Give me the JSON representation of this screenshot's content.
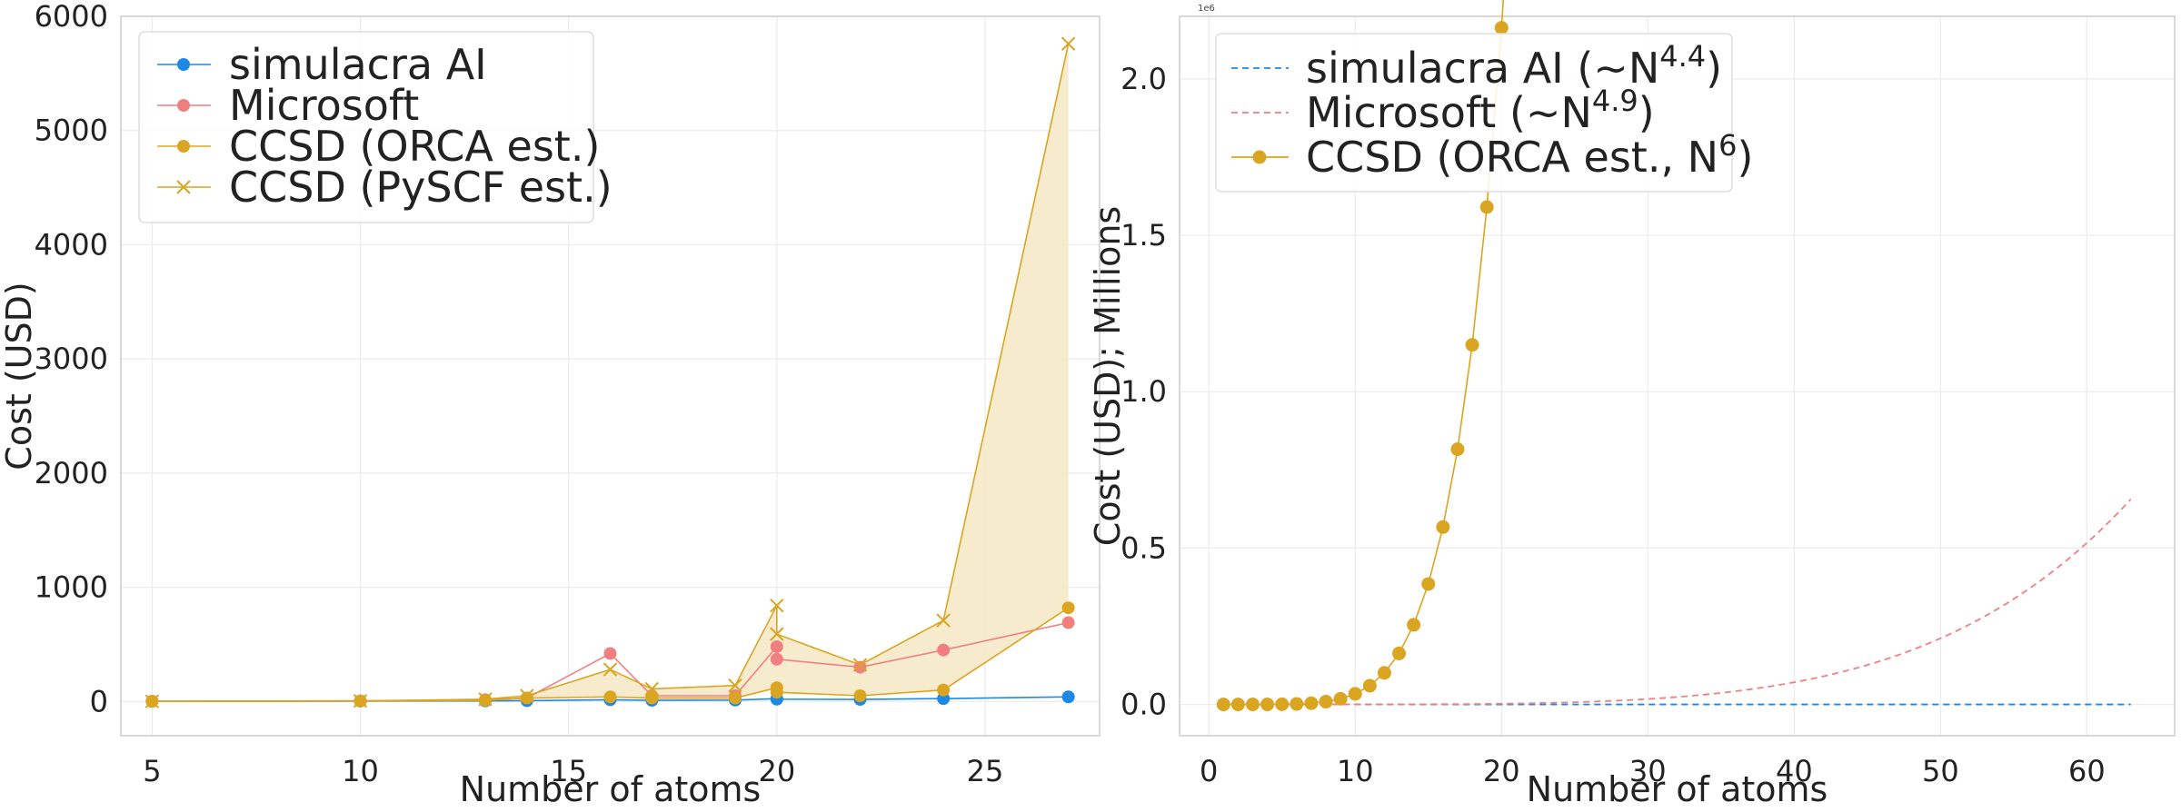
{
  "chart_data": [
    {
      "type": "line",
      "xlabel": "Number of atoms",
      "ylabel": "Cost (USD)",
      "xlim": [
        4.25,
        27.75
      ],
      "ylim": [
        -300,
        6000
      ],
      "xticks": [
        5,
        10,
        15,
        20,
        25
      ],
      "yticks": [
        0,
        1000,
        2000,
        3000,
        4000,
        5000,
        6000
      ],
      "grid": true,
      "legend_position": "top-left",
      "fill_between": {
        "lower": "CCSD (ORCA est.)",
        "upper": "CCSD (PySCF est.)",
        "color": "#f5e9c8"
      },
      "series": [
        {
          "name": "simulacra AI",
          "color": "#1e88e5",
          "marker": "circle",
          "x": [
            5,
            10,
            13,
            14,
            16,
            17,
            19,
            20,
            20,
            22,
            24,
            27
          ],
          "y": [
            1,
            3,
            5,
            7,
            15,
            10,
            12,
            25,
            20,
            18,
            25,
            40
          ]
        },
        {
          "name": "Microsoft",
          "color": "#f08080",
          "marker": "circle",
          "x": [
            5,
            10,
            13,
            14,
            16,
            17,
            19,
            20,
            20,
            22,
            24,
            27
          ],
          "y": [
            1,
            5,
            15,
            30,
            420,
            50,
            50,
            480,
            370,
            300,
            450,
            690
          ]
        },
        {
          "name": "CCSD (ORCA est.)",
          "color": "#daa520",
          "marker": "circle",
          "x": [
            5,
            10,
            13,
            14,
            16,
            17,
            19,
            20,
            20,
            22,
            24,
            27
          ],
          "y": [
            1,
            4,
            10,
            30,
            40,
            30,
            30,
            120,
            80,
            50,
            100,
            820
          ]
        },
        {
          "name": "CCSD (PySCF est.)",
          "color": "#daa520",
          "marker": "x",
          "x": [
            5,
            10,
            13,
            14,
            16,
            17,
            19,
            20,
            20,
            22,
            24,
            27
          ],
          "y": [
            1,
            5,
            20,
            50,
            280,
            110,
            140,
            840,
            590,
            320,
            710,
            5760
          ]
        }
      ]
    },
    {
      "type": "line",
      "xlabel": "Number of atoms",
      "ylabel": "Cost (USD); Millions",
      "offset_text": "1e6",
      "xlim": [
        -2,
        66
      ],
      "ylim": [
        -0.1,
        2.2
      ],
      "xticks": [
        0,
        10,
        20,
        30,
        40,
        50,
        60
      ],
      "yticks": [
        0.0,
        0.5,
        1.0,
        1.5,
        2.0
      ],
      "ytick_labels": [
        "0.0",
        "0.5",
        "1.0",
        "1.5",
        "2.0"
      ],
      "grid": true,
      "legend_position": "top-left",
      "series": [
        {
          "name": "simulacra AI (∼N^4.4)",
          "legend_base": "simulacra AI (∼N",
          "legend_exp": "4.4",
          "legend_close": ")",
          "color": "#1e88e5",
          "style": "dashed",
          "model": {
            "coef": 1.1e-07,
            "power": 4.4
          }
        },
        {
          "name": "Microsoft (∼N^4.9)",
          "legend_base": "Microsoft (∼N",
          "legend_exp": "4.9",
          "legend_close": ")",
          "color": "#f08080",
          "style": "dashed",
          "model": {
            "coef": 0.001,
            "power": 4.9
          }
        },
        {
          "name": "CCSD (ORCA est., N^6)",
          "legend_base": "CCSD (ORCA est., N",
          "legend_exp": "6",
          "legend_close": ")",
          "color": "#daa520",
          "style": "solid",
          "marker": "circle",
          "model": {
            "coef": 0.0338,
            "power": 6
          },
          "x_range": [
            1,
            63
          ]
        }
      ]
    }
  ]
}
